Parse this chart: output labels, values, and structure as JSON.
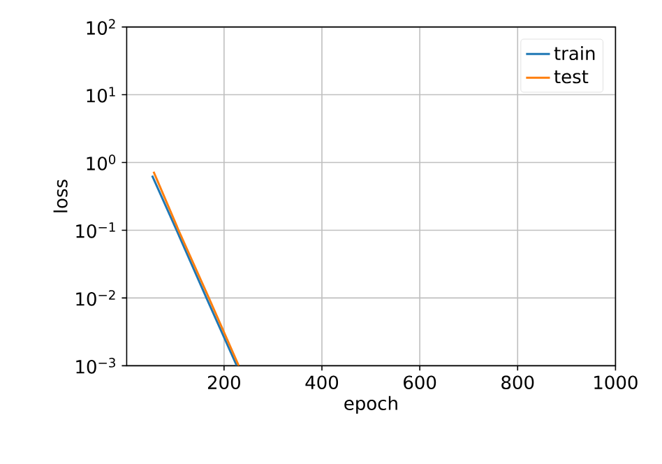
{
  "chart_data": {
    "type": "line",
    "xlabel": "epoch",
    "ylabel": "loss",
    "xlim": [
      1,
      1000
    ],
    "xticks": [
      200,
      400,
      600,
      800,
      1000
    ],
    "ylim": [
      0.001,
      100
    ],
    "yticks": [
      {
        "value": 0.001,
        "label": "10$^{−3}$"
      },
      {
        "value": 0.01,
        "label": "10$^{−2}$"
      },
      {
        "value": 0.1,
        "label": "10$^{−1}$"
      },
      {
        "value": 1,
        "label": "10$^{0}$"
      },
      {
        "value": 10,
        "label": "10$^{1}$"
      },
      {
        "value": 100,
        "label": "10$^{2}$"
      }
    ],
    "log": "y",
    "grid": true,
    "legend": "top right",
    "series": [
      {
        "name": "train",
        "color": "#1f77b4",
        "x": [
          53,
          103,
          164,
          226
        ],
        "values": [
          0.64,
          0.1,
          0.01,
          0.001
        ]
      },
      {
        "name": "test",
        "color": "#ff7f0e",
        "x": [
          56,
          107,
          169,
          230
        ],
        "values": [
          0.73,
          0.1,
          0.01,
          0.001
        ]
      }
    ]
  }
}
